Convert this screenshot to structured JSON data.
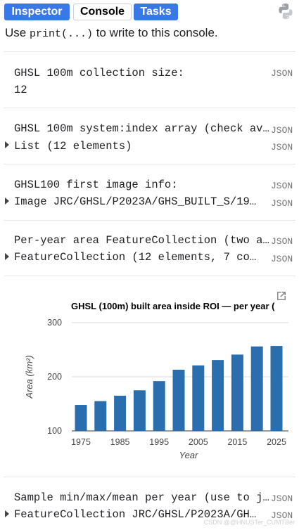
{
  "tabs": [
    {
      "label": "Inspector",
      "active": false
    },
    {
      "label": "Console",
      "active": true
    },
    {
      "label": "Tasks",
      "active": false
    }
  ],
  "console_hint": {
    "prefix": "Use ",
    "code": "print(...)",
    "suffix": " to write to this console."
  },
  "entries": [
    {
      "title": "GHSL 100m collection size:",
      "value": "12",
      "json": "JSON"
    },
    {
      "title": "GHSL 100m system:index array (check av…",
      "value": "List (12 elements)",
      "json": "JSON"
    },
    {
      "title": "GHSL100 first image info:",
      "value": "Image JRC/GHSL/P2023A/GHS_BUILT_S/19…",
      "json": "JSON"
    },
    {
      "title": "Per-year area FeatureCollection (two a…",
      "value": "FeatureCollection (12 elements, 7 co…",
      "json": "JSON"
    },
    {
      "title": "Sample min/max/mean per year (use to j…",
      "value": "FeatureCollection JRC/GHSL/P2023A/GH…",
      "json": "JSON"
    }
  ],
  "chart_data": {
    "type": "bar",
    "title": "GHSL (100m) built area inside ROI — per year (",
    "xlabel": "Year",
    "ylabel": "Area (km²)",
    "x": [
      1975,
      1980,
      1985,
      1990,
      1995,
      2000,
      2005,
      2010,
      2015,
      2020,
      2025
    ],
    "values": [
      148,
      155,
      165,
      175,
      192,
      213,
      221,
      231,
      241,
      256,
      257
    ],
    "ylim": [
      100,
      300
    ],
    "yticks": [
      100,
      200,
      300
    ],
    "xticks": [
      1975,
      1985,
      1995,
      2005,
      2015,
      2025
    ],
    "bar_color": "#2a6ead",
    "grid": true
  },
  "watermark": "CSDN @@HNUSTer_CUMTBer",
  "colors": {
    "tab_bg": "#3b78e7",
    "json_text": "#757575"
  }
}
